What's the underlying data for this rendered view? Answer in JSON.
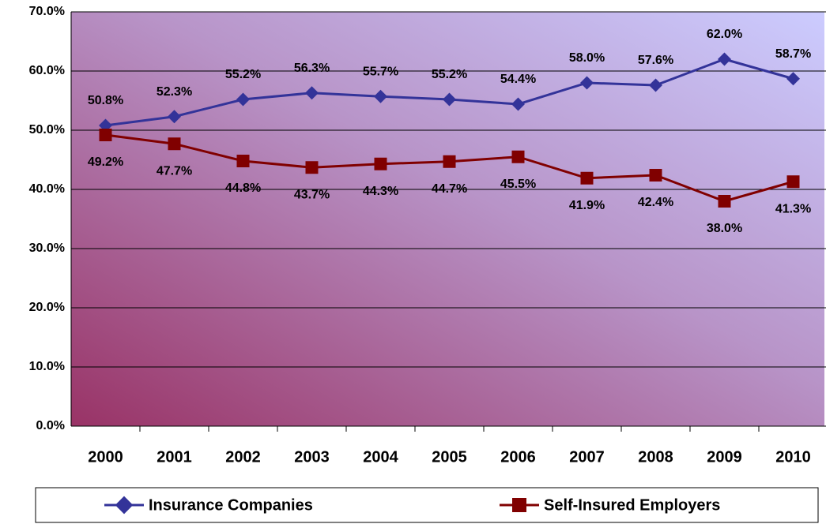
{
  "chart_data": {
    "type": "line",
    "categories": [
      "2000",
      "2001",
      "2002",
      "2003",
      "2004",
      "2005",
      "2006",
      "2007",
      "2008",
      "2009",
      "2010"
    ],
    "series": [
      {
        "name": "Insurance Companies",
        "color": "#333399",
        "marker": "diamond",
        "values": [
          50.8,
          52.3,
          55.2,
          56.3,
          55.7,
          55.2,
          54.4,
          58.0,
          57.6,
          62.0,
          58.7
        ],
        "value_labels": [
          "50.8%",
          "52.3%",
          "55.2%",
          "56.3%",
          "55.7%",
          "55.2%",
          "54.4%",
          "58.0%",
          "57.6%",
          "62.0%",
          "58.7%"
        ]
      },
      {
        "name": "Self-Insured Employers",
        "color": "#800000",
        "marker": "square",
        "values": [
          49.2,
          47.7,
          44.8,
          43.7,
          44.3,
          44.7,
          45.5,
          41.9,
          42.4,
          38.0,
          41.3
        ],
        "value_labels": [
          "49.2%",
          "47.7%",
          "44.8%",
          "43.7%",
          "44.3%",
          "44.7%",
          "45.5%",
          "41.9%",
          "42.4%",
          "38.0%",
          "41.3%"
        ]
      }
    ],
    "ylim": [
      0,
      70
    ],
    "yticks": [
      {
        "value": 0,
        "label": "0.0%"
      },
      {
        "value": 10,
        "label": "10.0%"
      },
      {
        "value": 20,
        "label": "20.0%"
      },
      {
        "value": 30,
        "label": "30.0%"
      },
      {
        "value": 40,
        "label": "40.0%"
      },
      {
        "value": 50,
        "label": "50.0%"
      },
      {
        "value": 60,
        "label": "60.0%"
      },
      {
        "value": 70,
        "label": "70.0%"
      }
    ],
    "grid": true,
    "legend": "bottom"
  }
}
